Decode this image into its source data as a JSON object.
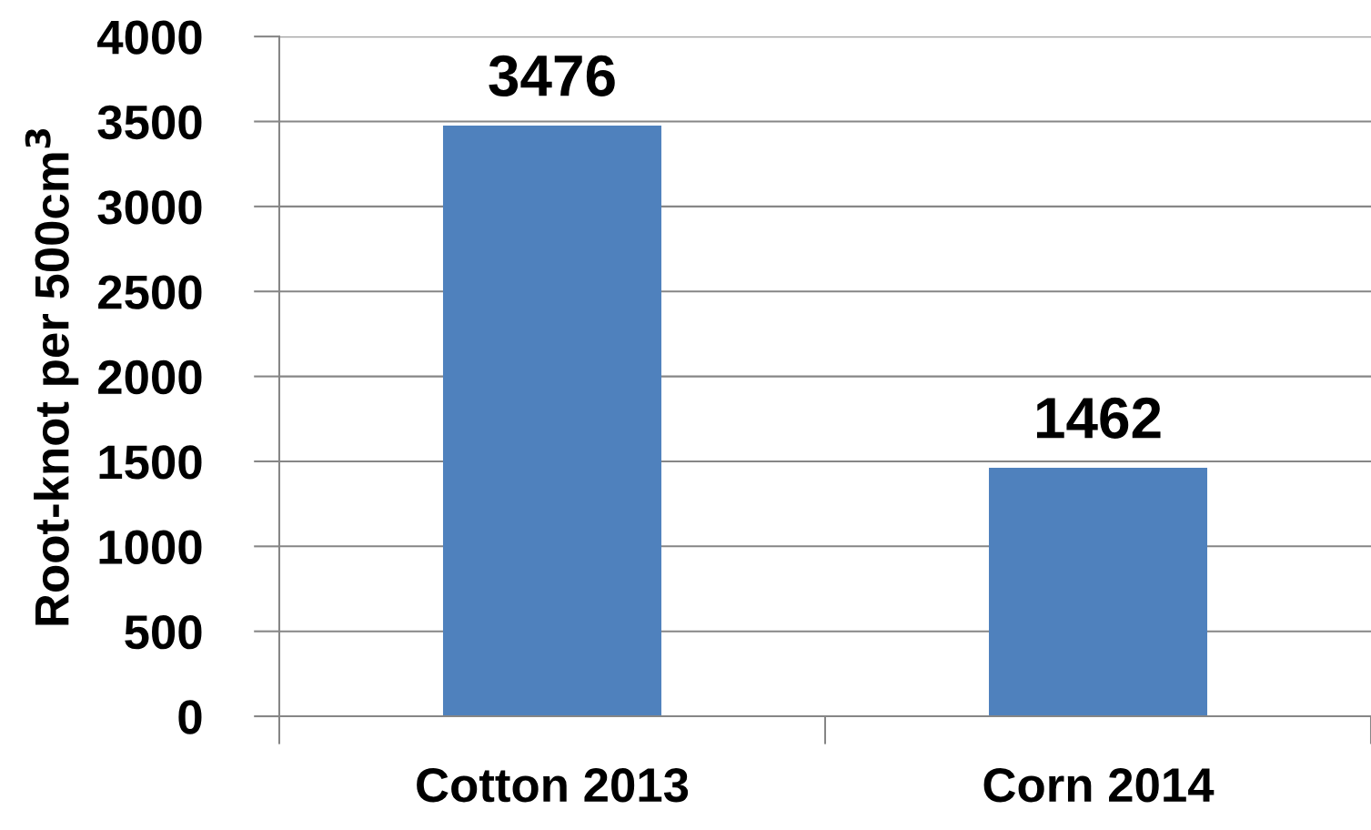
{
  "chart_data": {
    "type": "bar",
    "ylabel": "Root-knot per 500cm$^{3}$",
    "categories": [
      "Cotton 2013",
      "Corn 2014"
    ],
    "values": [
      3476,
      1462
    ],
    "color": "#4f81bd",
    "ylim": [
      0,
      4000
    ],
    "yticks": [
      0,
      500,
      1000,
      1500,
      2000,
      2500,
      3000,
      3500,
      4000
    ],
    "grid": "y",
    "data_labels": true
  }
}
